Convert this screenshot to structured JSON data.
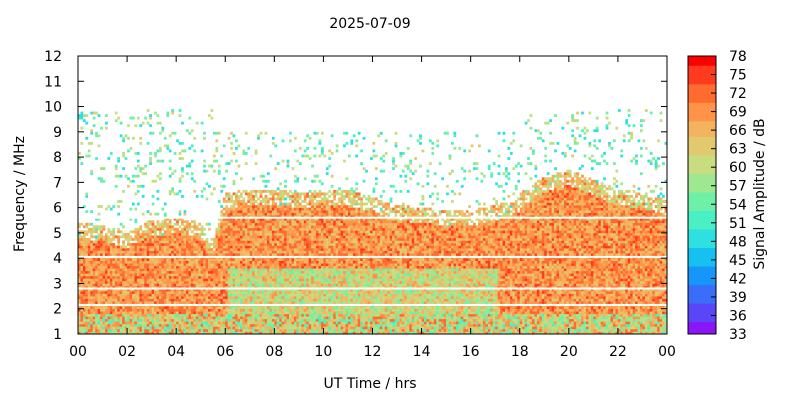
{
  "chart_data": {
    "type": "heatmap",
    "title": "2025-07-09",
    "xlabel": "UT Time / hrs",
    "ylabel": "Frequency / MHz",
    "colorbar_label": "Signal Amplitude / dB",
    "xlim": [
      0,
      24
    ],
    "ylim": [
      1,
      12
    ],
    "x_ticks": [
      "00",
      "02",
      "04",
      "06",
      "08",
      "10",
      "12",
      "14",
      "16",
      "18",
      "20",
      "22",
      "00"
    ],
    "y_ticks": [
      "1",
      "2",
      "3",
      "4",
      "5",
      "6",
      "7",
      "8",
      "9",
      "10",
      "11",
      "12"
    ],
    "colorbar_range": [
      33,
      78
    ],
    "colorbar_ticks": [
      "78",
      "75",
      "72",
      "69",
      "66",
      "63",
      "60",
      "57",
      "54",
      "51",
      "48",
      "45",
      "42",
      "39",
      "36",
      "33"
    ],
    "colorbar_colors": [
      "#ff0000",
      "#ff3a1e",
      "#ff6a2f",
      "#ff9448",
      "#f4b35f",
      "#e2c96e",
      "#c8dc80",
      "#9ee890",
      "#6ef0a8",
      "#4af0c4",
      "#2ee0e0",
      "#16c0f0",
      "#1696f8",
      "#3a6ef8",
      "#5a46f8",
      "#8a16f8"
    ],
    "background_color": "#ffffff",
    "grid": false,
    "high_freq_edge_mhz": {
      "hours": [
        0,
        1,
        2,
        3,
        4,
        5,
        5.5,
        6,
        7,
        8,
        9,
        10,
        11,
        12,
        13,
        14,
        15,
        16,
        17,
        17.9,
        18,
        19,
        20,
        21,
        22,
        23,
        24
      ],
      "values": [
        4.8,
        4.7,
        4.4,
        4.9,
        5.0,
        4.8,
        4.0,
        6.0,
        6.1,
        6.1,
        6.0,
        6.1,
        6.1,
        5.8,
        5.5,
        5.4,
        5.3,
        5.3,
        5.5,
        5.7,
        6.0,
        6.6,
        6.9,
        6.5,
        6.1,
        6.0,
        5.7
      ]
    }
  }
}
